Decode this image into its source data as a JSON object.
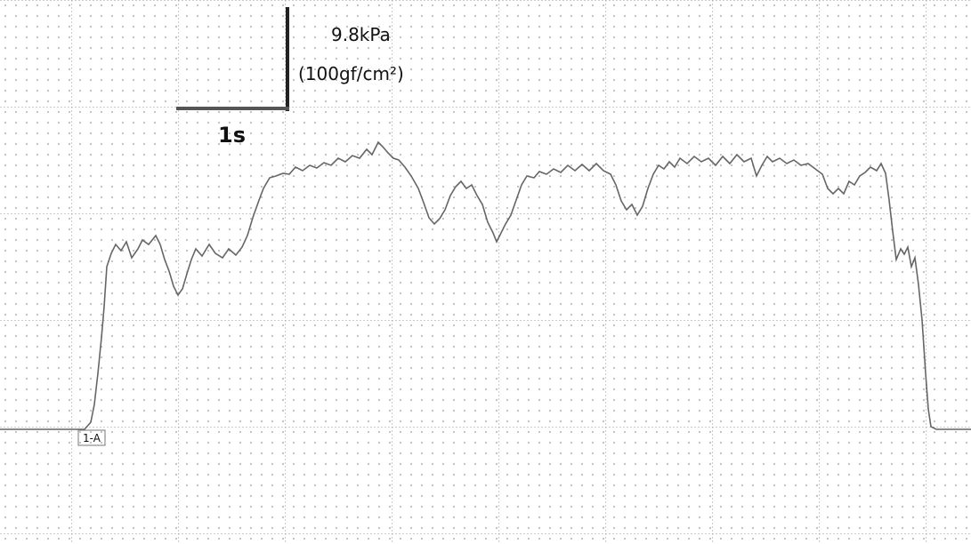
{
  "scale": {
    "pressure": "9.8kPa",
    "pressure_alt": "(100gf/cm²)",
    "time": "1s"
  },
  "marker": "1-A"
}
